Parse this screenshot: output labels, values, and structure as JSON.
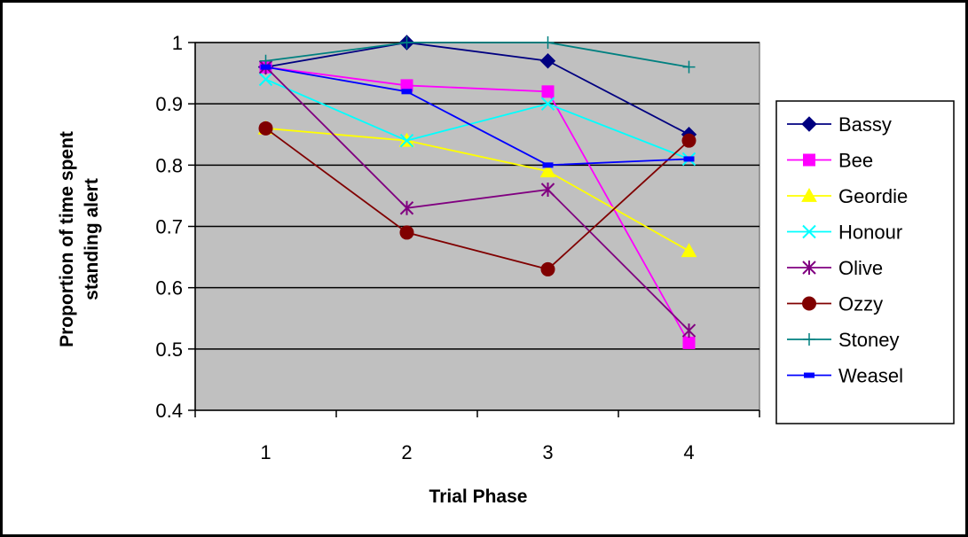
{
  "chart_data": {
    "type": "line",
    "title": "",
    "xlabel": "Trial Phase",
    "ylabel_lines": [
      "Proportion of time spent",
      "standing alert"
    ],
    "x": [
      1,
      2,
      3,
      4
    ],
    "x_tick_labels": [
      "1",
      "2",
      "3",
      "4"
    ],
    "ylim": [
      0.4,
      1.0
    ],
    "y_ticks": [
      0.4,
      0.5,
      0.6,
      0.7,
      0.8,
      0.9,
      1.0
    ],
    "y_tick_labels": [
      "0.4",
      "0.5",
      "0.6",
      "0.7",
      "0.8",
      "0.9",
      "1"
    ],
    "grid": "horizontal major gridlines",
    "plot_background": "#C0C0C0",
    "legend_position": "right",
    "series": [
      {
        "name": "Bassy",
        "values": [
          0.96,
          1.0,
          0.97,
          0.85
        ],
        "color": "#000080",
        "marker": "diamond"
      },
      {
        "name": "Bee",
        "values": [
          0.96,
          0.93,
          0.92,
          0.51
        ],
        "color": "#FF00FF",
        "marker": "square"
      },
      {
        "name": "Geordie",
        "values": [
          0.86,
          0.84,
          0.79,
          0.66
        ],
        "color": "#FFFF00",
        "marker": "triangle"
      },
      {
        "name": "Honour",
        "values": [
          0.94,
          0.84,
          0.9,
          0.81
        ],
        "color": "#00FFFF",
        "marker": "x"
      },
      {
        "name": "Olive",
        "values": [
          0.96,
          0.73,
          0.76,
          0.53
        ],
        "color": "#800080",
        "marker": "star"
      },
      {
        "name": "Ozzy",
        "values": [
          0.86,
          0.69,
          0.63,
          0.84
        ],
        "color": "#800000",
        "marker": "circle"
      },
      {
        "name": "Stoney",
        "values": [
          0.97,
          1.0,
          1.0,
          0.96
        ],
        "color": "#008080",
        "marker": "plus"
      },
      {
        "name": "Weasel",
        "values": [
          0.96,
          0.92,
          0.8,
          0.81
        ],
        "color": "#0000FF",
        "marker": "dash"
      }
    ]
  }
}
